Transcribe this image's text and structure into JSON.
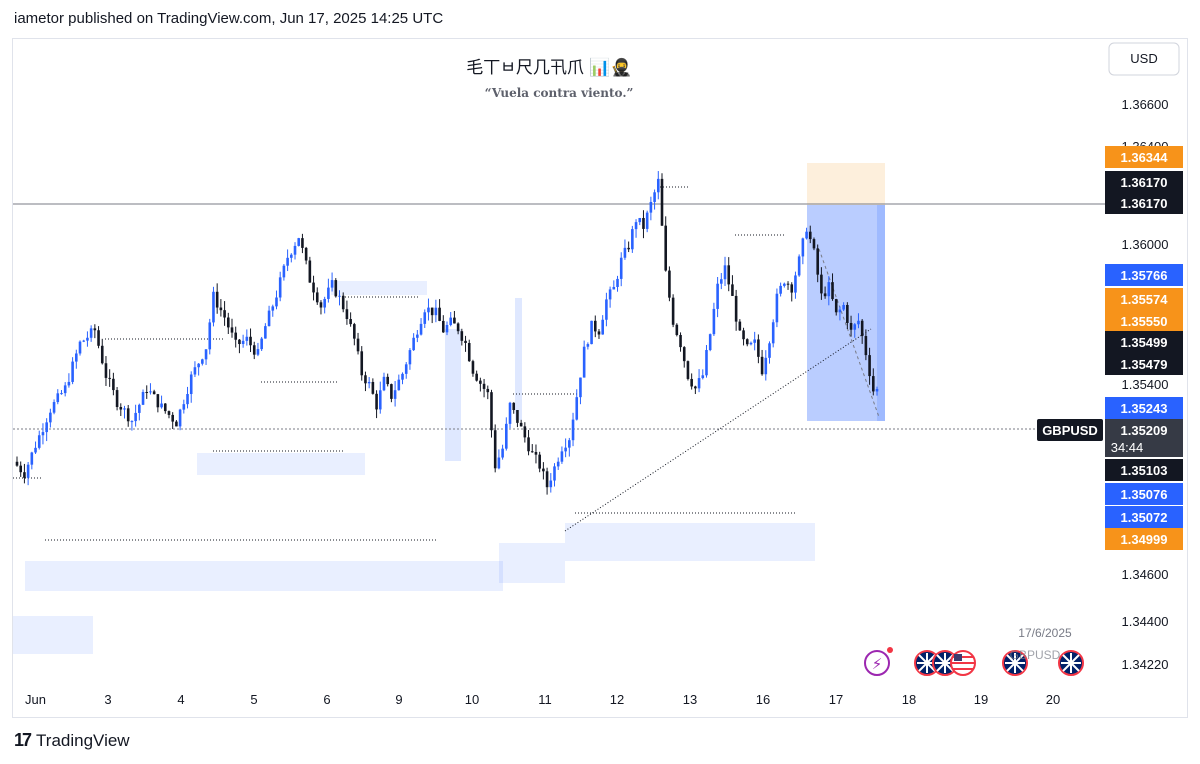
{
  "header": {
    "text": "iametor published on TradingView.com, Jun 17, 2025 14:25 UTC"
  },
  "brand": {
    "name": "TradingView"
  },
  "watermark": {
    "title": "毛丅ㅂ尺几卂爪 📊🥷",
    "subtitle": "“Vuela contra viento.”"
  },
  "currency_button": {
    "label": "USD"
  },
  "symbol_badge": {
    "label": "GBPUSD",
    "countdown": "34:44"
  },
  "date_label": "17/6/2025",
  "event_partial_label": "GBPUSD",
  "colors": {
    "up": "#2962ff",
    "down": "#131722",
    "orange": "#f7931a",
    "blue_badge": "#2962ff",
    "black_badge": "#131722"
  },
  "chart_data": {
    "type": "candlestick",
    "symbol": "GBPUSD",
    "xaxis_labels": [
      "Jun",
      "3",
      "4",
      "5",
      "6",
      "9",
      "10",
      "11",
      "12",
      "13",
      "16",
      "17",
      "18",
      "19",
      "20"
    ],
    "yaxis_ticks": [
      "1.36600",
      "1.36400",
      "1.36000",
      "1.35400",
      "1.34600",
      "1.34400",
      "1.34220"
    ],
    "ylim": [
      1.341,
      1.3676
    ],
    "price_badges": [
      {
        "value": "1.36344",
        "color": "orange"
      },
      {
        "value": "1.36170",
        "color": "black"
      },
      {
        "value": "1.36170",
        "color": "black"
      },
      {
        "value": "1.35766",
        "color": "blue"
      },
      {
        "value": "1.35574",
        "color": "orange"
      },
      {
        "value": "1.35550",
        "color": "orange"
      },
      {
        "value": "1.35499",
        "color": "black"
      },
      {
        "value": "1.35479",
        "color": "black"
      },
      {
        "value": "1.35243",
        "color": "blue"
      },
      {
        "value": "1.35209",
        "color": "current"
      },
      {
        "value": "1.35103",
        "color": "black"
      },
      {
        "value": "1.35076",
        "color": "blue"
      },
      {
        "value": "1.35072",
        "color": "blue"
      },
      {
        "value": "1.34999",
        "color": "orange"
      }
    ],
    "path": [
      [
        0,
        1.3483
      ],
      [
        1.5,
        1.3477
      ],
      [
        3,
        1.3492
      ],
      [
        5,
        1.3511
      ],
      [
        7,
        1.3522
      ],
      [
        9,
        1.3546
      ],
      [
        11,
        1.3553
      ],
      [
        12.5,
        1.3529
      ],
      [
        14,
        1.3515
      ],
      [
        16,
        1.3505
      ],
      [
        18,
        1.3522
      ],
      [
        20,
        1.3512
      ],
      [
        22,
        1.3504
      ],
      [
        24,
        1.3528
      ],
      [
        26,
        1.3544
      ],
      [
        27,
        1.3571
      ],
      [
        28.5,
        1.356
      ],
      [
        30,
        1.3545
      ],
      [
        31.5,
        1.3548
      ],
      [
        33,
        1.354
      ],
      [
        34,
        1.3555
      ],
      [
        35.5,
        1.3572
      ],
      [
        37,
        1.3592
      ],
      [
        38.5,
        1.3603
      ],
      [
        40,
        1.358
      ],
      [
        41.5,
        1.3566
      ],
      [
        43,
        1.3577
      ],
      [
        44,
        1.357
      ],
      [
        45,
        1.3561
      ],
      [
        46,
        1.3548
      ],
      [
        47,
        1.353
      ],
      [
        48,
        1.3524
      ],
      [
        49,
        1.3513
      ],
      [
        50,
        1.3526
      ],
      [
        51,
        1.3518
      ],
      [
        52.5,
        1.353
      ],
      [
        54,
        1.3548
      ],
      [
        55.5,
        1.3565
      ],
      [
        57,
        1.3562
      ],
      [
        58,
        1.3553
      ],
      [
        59,
        1.3557
      ],
      [
        60,
        1.3554
      ],
      [
        61,
        1.3546
      ],
      [
        62,
        1.3532
      ],
      [
        63,
        1.3525
      ],
      [
        64,
        1.3519
      ],
      [
        65,
        1.3481
      ],
      [
        66,
        1.349
      ],
      [
        67,
        1.3513
      ],
      [
        68,
        1.3505
      ],
      [
        69,
        1.3496
      ],
      [
        70,
        1.3487
      ],
      [
        71,
        1.3481
      ],
      [
        72,
        1.347
      ],
      [
        73,
        1.348
      ],
      [
        74,
        1.3491
      ],
      [
        75,
        1.3496
      ],
      [
        76,
        1.3518
      ],
      [
        77,
        1.3542
      ],
      [
        78,
        1.3555
      ],
      [
        79,
        1.3553
      ],
      [
        80,
        1.3569
      ],
      [
        81,
        1.3575
      ],
      [
        82,
        1.359
      ],
      [
        83,
        1.3598
      ],
      [
        84,
        1.3612
      ],
      [
        85,
        1.3608
      ],
      [
        86,
        1.362
      ],
      [
        87,
        1.3632
      ],
      [
        88,
        1.3583
      ],
      [
        89,
        1.3558
      ],
      [
        90,
        1.3546
      ],
      [
        91,
        1.3529
      ],
      [
        92,
        1.3522
      ],
      [
        93,
        1.3529
      ],
      [
        94,
        1.3551
      ],
      [
        95,
        1.3576
      ],
      [
        96,
        1.3586
      ],
      [
        97,
        1.357
      ],
      [
        98,
        1.355
      ],
      [
        99,
        1.3543
      ],
      [
        100,
        1.3546
      ],
      [
        101,
        1.3532
      ],
      [
        102,
        1.3549
      ],
      [
        103,
        1.357
      ],
      [
        104,
        1.358
      ],
      [
        105,
        1.3576
      ],
      [
        106,
        1.359
      ],
      [
        107,
        1.3608
      ],
      [
        108,
        1.3594
      ],
      [
        109,
        1.3571
      ],
      [
        110,
        1.3576
      ],
      [
        111,
        1.3561
      ],
      [
        112,
        1.3566
      ],
      [
        113,
        1.3552
      ],
      [
        114,
        1.3558
      ],
      [
        115,
        1.3541
      ],
      [
        116,
        1.3521
      ]
    ]
  }
}
